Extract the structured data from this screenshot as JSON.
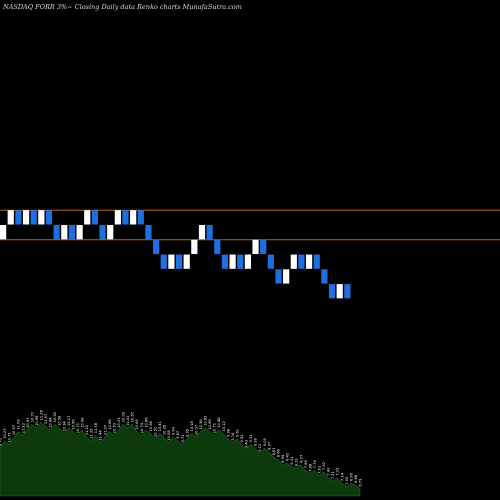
{
  "chart_data": {
    "type": "renko",
    "title": "NASDAQ FORR 3%~  Closing Daily data  Renko  charts MunafaSutra.com",
    "up_color": "#ffffff",
    "down_color": "#1e6fe0",
    "reference_line_color": "#b8621b",
    "volume_color": "#0d3a0d",
    "volume_edge_color": "#1a6b1a",
    "reference_levels": [
      13.75,
      12.45
    ],
    "price_range": [
      1.0,
      23.0
    ],
    "bricks": [
      {
        "dir": "up",
        "close": 13.1
      },
      {
        "dir": "up",
        "close": 13.75
      },
      {
        "dir": "down",
        "close": 13.1
      },
      {
        "dir": "up",
        "close": 13.75
      },
      {
        "dir": "down",
        "close": 13.1
      },
      {
        "dir": "up",
        "close": 13.75
      },
      {
        "dir": "down",
        "close": 13.1
      },
      {
        "dir": "down",
        "close": 12.45
      },
      {
        "dir": "up",
        "close": 13.1
      },
      {
        "dir": "down",
        "close": 12.45
      },
      {
        "dir": "up",
        "close": 13.1
      },
      {
        "dir": "up",
        "close": 13.75
      },
      {
        "dir": "down",
        "close": 13.1
      },
      {
        "dir": "down",
        "close": 12.45
      },
      {
        "dir": "up",
        "close": 13.1
      },
      {
        "dir": "up",
        "close": 13.75
      },
      {
        "dir": "down",
        "close": 13.1
      },
      {
        "dir": "up",
        "close": 13.75
      },
      {
        "dir": "down",
        "close": 13.1
      },
      {
        "dir": "down",
        "close": 12.45
      },
      {
        "dir": "down",
        "close": 11.8
      },
      {
        "dir": "down",
        "close": 11.15
      },
      {
        "dir": "up",
        "close": 11.8
      },
      {
        "dir": "down",
        "close": 11.15
      },
      {
        "dir": "up",
        "close": 11.8
      },
      {
        "dir": "up",
        "close": 12.45
      },
      {
        "dir": "up",
        "close": 13.1
      },
      {
        "dir": "down",
        "close": 12.45
      },
      {
        "dir": "down",
        "close": 11.8
      },
      {
        "dir": "down",
        "close": 11.15
      },
      {
        "dir": "up",
        "close": 11.8
      },
      {
        "dir": "down",
        "close": 11.15
      },
      {
        "dir": "up",
        "close": 11.8
      },
      {
        "dir": "up",
        "close": 12.45
      },
      {
        "dir": "down",
        "close": 11.8
      },
      {
        "dir": "down",
        "close": 11.15
      },
      {
        "dir": "down",
        "close": 10.5
      },
      {
        "dir": "up",
        "close": 11.15
      },
      {
        "dir": "up",
        "close": 11.8
      },
      {
        "dir": "down",
        "close": 11.15
      },
      {
        "dir": "up",
        "close": 11.8
      },
      {
        "dir": "down",
        "close": 11.15
      },
      {
        "dir": "down",
        "close": 10.5
      },
      {
        "dir": "down",
        "close": 9.85
      },
      {
        "dir": "up",
        "close": 10.5
      },
      {
        "dir": "down",
        "close": 9.85
      }
    ],
    "volume": {
      "values": [
        5.2,
        6.0,
        5.6,
        6.4,
        7.0,
        6.6,
        7.2,
        7.8,
        7.4,
        8.0,
        7.6,
        7.2,
        7.8,
        7.4,
        6.8,
        7.4,
        7.0,
        6.6,
        7.2,
        6.4,
        6.0,
        6.6,
        5.8,
        6.4,
        7.0,
        6.6,
        7.2,
        7.8,
        7.4,
        7.8,
        7.0,
        6.6,
        7.2,
        6.8,
        6.2,
        6.8,
        6.4,
        5.8,
        6.4,
        6.0,
        5.6,
        6.2,
        6.8,
        6.4,
        7.0,
        7.4,
        7.0,
        6.6,
        7.2,
        6.8,
        6.2,
        5.8,
        6.2,
        5.6,
        5.0,
        5.6,
        5.2,
        4.6,
        5.2,
        4.8,
        4.2,
        4.0,
        3.4,
        3.6,
        3.2,
        3.0,
        3.4,
        2.8,
        2.4,
        2.8,
        2.2,
        2.6,
        2.0,
        1.6,
        2.0,
        1.4,
        1.0,
        1.4,
        1.2,
        0.8
      ],
      "labels": [
        "9.76",
        "10.23",
        "10.71",
        "10.97",
        "11.09",
        "11.22",
        "10.97",
        "10.72",
        "10.96",
        "11.28",
        "11.07",
        "10.84",
        "10.62",
        "10.58",
        "10.34",
        "10.17",
        "10.56",
        "10.71",
        "10.98",
        "11.22",
        "11.35",
        "11.58",
        "11.44",
        "11.07",
        "10.88",
        "10.53",
        "10.21",
        "10.09",
        "10.41",
        "10.57",
        "10.65",
        "10.74",
        "10.86",
        "10.98",
        "10.52",
        "10.41",
        "10.26",
        "10.08",
        "9.94",
        "9.87",
        "9.72",
        "9.95",
        "10.18",
        "10.37",
        "10.56",
        "10.82",
        "10.96",
        "10.71",
        "10.48",
        "10.22",
        "9.98",
        "9.74",
        "9.61",
        "9.52",
        "9.43",
        "9.31",
        "9.28",
        "9.12",
        "9.05",
        "8.97",
        "8.81",
        "8.66",
        "8.54",
        "8.42",
        "8.31",
        "8.19",
        "8.07",
        "7.96",
        "7.88",
        "7.74",
        "7.61",
        "7.52",
        "7.43",
        "7.31",
        "7.22",
        "7.14",
        "7.05",
        "6.96",
        "6.88",
        "6.79"
      ]
    }
  }
}
